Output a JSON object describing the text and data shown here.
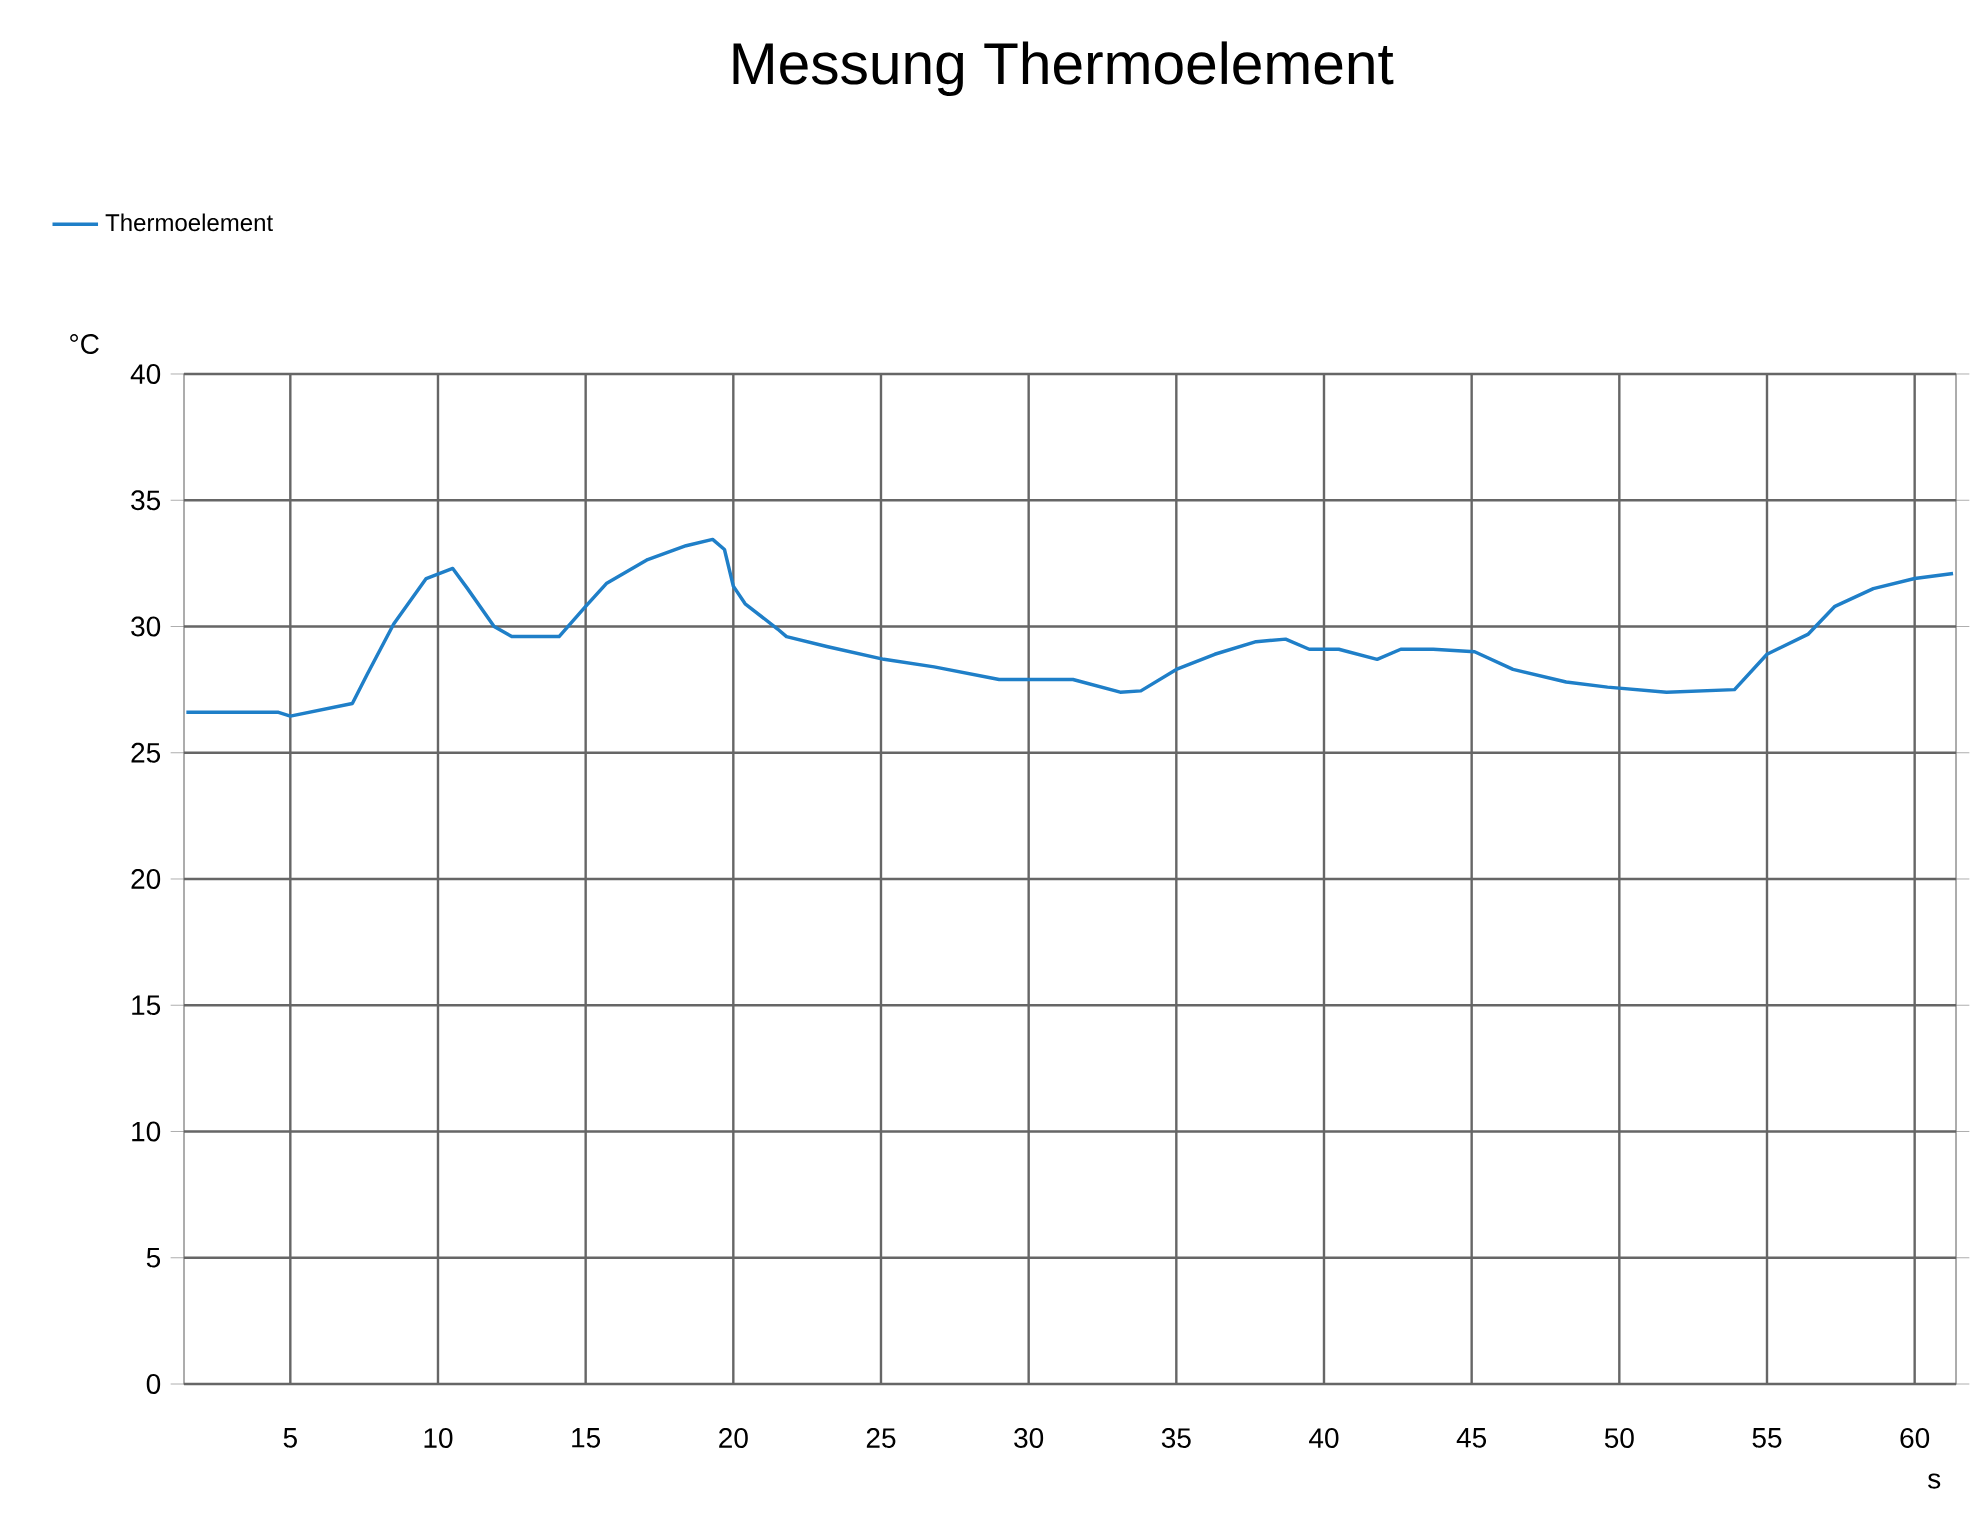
{
  "chart_data": {
    "type": "line",
    "title": "Messung Thermoelement",
    "xlabel": "s",
    "ylabel": "°C",
    "x": [
      1.48,
      4.6,
      5.0,
      7.1,
      7.6,
      8.5,
      9.6,
      10.5,
      11.0,
      11.9,
      12.5,
      14.1,
      15.0,
      15.7,
      17.1,
      18.4,
      19.3,
      19.7,
      20.0,
      20.4,
      21.5,
      21.8,
      23.2,
      25.1,
      26.8,
      29.0,
      31.5,
      33.1,
      33.8,
      35.0,
      36.3,
      37.7,
      38.7,
      39.5,
      40.5,
      41.8,
      42.6,
      43.7,
      45.1,
      46.4,
      48.2,
      49.6,
      51.6,
      53.9,
      55.0,
      56.4,
      57.3,
      58.6,
      60.0,
      61.3
    ],
    "series": [
      {
        "name": "Thermoelement",
        "color": "#1f7fc8",
        "values": [
          26.6,
          26.6,
          26.45,
          26.95,
          28.1,
          30.1,
          31.9,
          32.3,
          31.5,
          30.0,
          29.6,
          29.6,
          30.8,
          31.7,
          32.65,
          33.2,
          33.45,
          33.05,
          31.6,
          30.9,
          29.9,
          29.6,
          29.2,
          28.7,
          28.4,
          27.9,
          27.9,
          27.4,
          27.45,
          28.3,
          28.9,
          29.4,
          29.5,
          29.1,
          29.1,
          28.7,
          29.1,
          29.1,
          29.0,
          28.3,
          27.8,
          27.6,
          27.4,
          27.5,
          28.9,
          29.7,
          30.8,
          31.5,
          31.9,
          32.1
        ]
      }
    ],
    "xlim": [
      1.4,
      61.4
    ],
    "ylim": [
      0,
      40
    ],
    "xticks": [
      5,
      10,
      15,
      20,
      25,
      30,
      35,
      40,
      45,
      50,
      55,
      60
    ],
    "yticks": [
      0,
      5,
      10,
      15,
      20,
      25,
      30,
      35,
      40
    ],
    "grid": true,
    "legend": "top left",
    "marker": "none",
    "line_style": "solid"
  }
}
